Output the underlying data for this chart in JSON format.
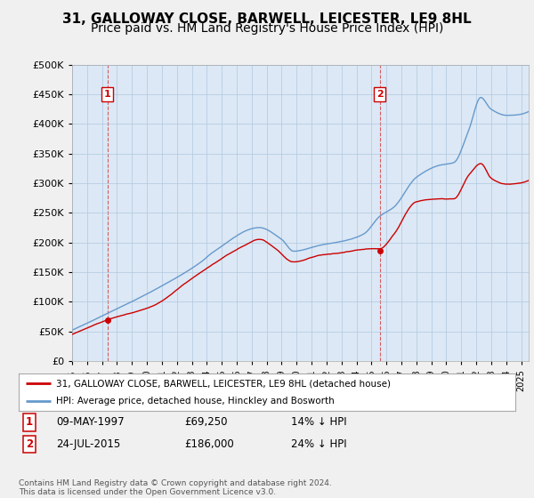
{
  "title": "31, GALLOWAY CLOSE, BARWELL, LEICESTER, LE9 8HL",
  "subtitle": "Price paid vs. HM Land Registry's House Price Index (HPI)",
  "ytick_values": [
    0,
    50000,
    100000,
    150000,
    200000,
    250000,
    300000,
    350000,
    400000,
    450000,
    500000
  ],
  "ylim": [
    0,
    500000
  ],
  "xlim_start": 1995.0,
  "xlim_end": 2025.5,
  "sale1_x": 1997.36,
  "sale1_y": 69250,
  "sale1_label": "1",
  "sale1_date": "09-MAY-1997",
  "sale1_price": "£69,250",
  "sale1_hpi": "14% ↓ HPI",
  "sale2_x": 2015.56,
  "sale2_y": 186000,
  "sale2_label": "2",
  "sale2_date": "24-JUL-2015",
  "sale2_price": "£186,000",
  "sale2_hpi": "24% ↓ HPI",
  "red_color": "#cc0000",
  "blue_color": "#6699cc",
  "legend_line1": "31, GALLOWAY CLOSE, BARWELL, LEICESTER, LE9 8HL (detached house)",
  "legend_line2": "HPI: Average price, detached house, Hinckley and Bosworth",
  "footnote": "Contains HM Land Registry data © Crown copyright and database right 2024.\nThis data is licensed under the Open Government Licence v3.0.",
  "background_color": "#f0f0f0",
  "plot_bg_color": "#dce8f5",
  "title_fontsize": 11,
  "subtitle_fontsize": 10
}
